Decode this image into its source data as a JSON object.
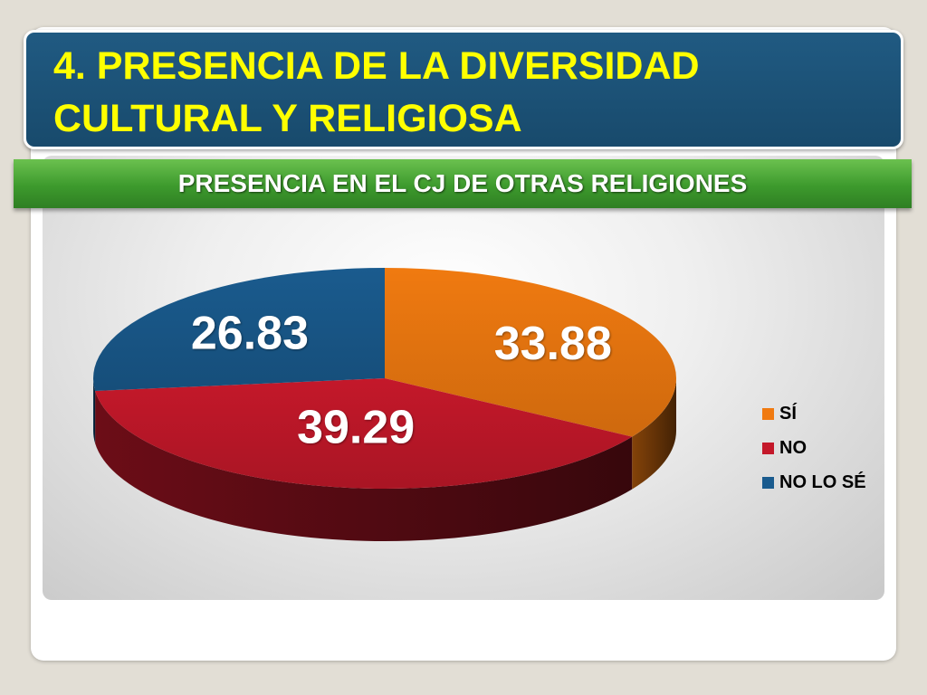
{
  "slide": {
    "title": "4. PRESENCIA DE LA DIVERSIDAD\nCULTURAL Y RELIGIOSA",
    "subtitle": "PRESENCIA EN EL CJ DE OTRAS RELIGIONES"
  },
  "chart_data": {
    "type": "pie",
    "style": "3d",
    "categories": [
      "SÍ",
      "NO",
      "NO LO SÉ"
    ],
    "values": [
      33.88,
      39.29,
      26.83
    ],
    "colors": [
      "#f07a10",
      "#c4182a",
      "#1a5b8e"
    ],
    "data_labels": [
      "33.88",
      "39.29",
      "26.83"
    ],
    "legend": "right",
    "title": "PRESENCIA EN EL CJ DE OTRAS RELIGIONES"
  }
}
